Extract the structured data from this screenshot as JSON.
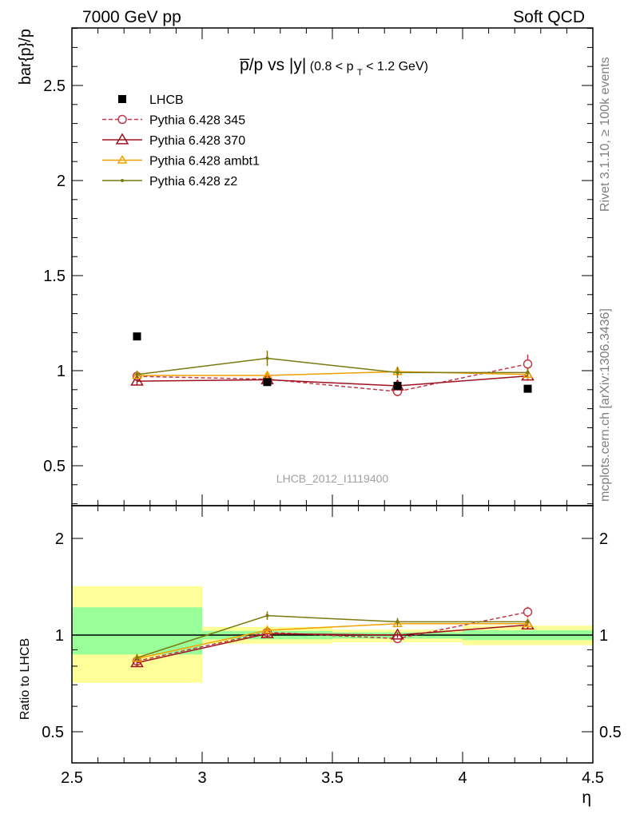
{
  "header": {
    "left": "7000 GeV pp",
    "right": "Soft QCD",
    "side_top": "Rivet 3.1.10, ≥ 100k events",
    "side_bottom": "mcplots.cern.ch [arXiv:1306.3436]",
    "watermark": "LHCB_2012_I1119400"
  },
  "chart_data": [
    {
      "type": "line",
      "title_main": "p̅/p vs |y|",
      "title_cut": "(0.8 < p",
      "title_cut_sub": "T",
      "title_cut_end": " < 1.2 GeV)",
      "xlabel": "η",
      "ylabel": "bar{p}/p",
      "xlim": [
        2.5,
        4.5
      ],
      "ylim": [
        0.3,
        2.8
      ],
      "x_ticks": [
        "2.5",
        "3",
        "3.5",
        "4",
        "4.5"
      ],
      "y_ticks": [
        "0.5",
        "1",
        "1.5",
        "2",
        "2.5"
      ],
      "legend_position": "top-left",
      "data": {
        "name": "LHCB",
        "color": "#000000",
        "x": [
          2.75,
          3.25,
          3.75,
          4.25
        ],
        "y": [
          1.18,
          0.94,
          0.92,
          0.905
        ]
      },
      "series": [
        {
          "name": "Pythia 6.428 345",
          "color": "#c0394b",
          "dash": "5,3",
          "marker": "open-circle",
          "x": [
            2.75,
            3.25,
            3.75,
            4.25
          ],
          "y": [
            0.97,
            0.955,
            0.89,
            1.035
          ],
          "err": [
            0.02,
            0.02,
            0.025,
            0.05
          ]
        },
        {
          "name": "Pythia 6.428 370",
          "color": "#a01020",
          "dash": "",
          "marker": "open-triangle",
          "x": [
            2.75,
            3.25,
            3.75,
            4.25
          ],
          "y": [
            0.945,
            0.952,
            0.92,
            0.972
          ],
          "err": [
            0.02,
            0.02,
            0.02,
            0.025
          ]
        },
        {
          "name": "Pythia 6.428 ambt1",
          "color": "#f0a000",
          "dash": "",
          "marker": "small-open-triangle",
          "x": [
            2.75,
            3.25,
            3.75,
            4.25
          ],
          "y": [
            0.975,
            0.975,
            0.995,
            0.98
          ],
          "err": [
            0.02,
            0.02,
            0.025,
            0.025
          ]
        },
        {
          "name": "Pythia 6.428 z2",
          "color": "#7a7a10",
          "dash": "",
          "marker": "dot",
          "x": [
            2.75,
            3.25,
            3.75,
            4.25
          ],
          "y": [
            0.98,
            1.065,
            0.99,
            0.99
          ],
          "err": [
            0.02,
            0.04,
            0.03,
            0.02
          ]
        }
      ]
    },
    {
      "type": "line",
      "ylabel": "Ratio to LHCB",
      "xlim": [
        2.5,
        4.5
      ],
      "ylim": [
        0.3,
        2.3
      ],
      "y_ticks": [
        "0.5",
        "1",
        "2"
      ],
      "bands": [
        {
          "x0": 2.5,
          "x1": 3.0,
          "yellow": [
            0.71,
            1.42
          ],
          "green": [
            0.87,
            1.22
          ]
        },
        {
          "x0": 3.0,
          "x1": 3.5,
          "yellow": [
            0.94,
            1.06
          ],
          "green": [
            0.97,
            1.03
          ]
        },
        {
          "x0": 3.5,
          "x1": 4.0,
          "yellow": [
            0.95,
            1.04
          ],
          "green": [
            0.975,
            1.02
          ]
        },
        {
          "x0": 4.0,
          "x1": 4.5,
          "yellow": [
            0.93,
            1.07
          ],
          "green": [
            0.965,
            1.035
          ]
        }
      ],
      "series": [
        {
          "name": "Pythia 6.428 345",
          "x": [
            2.75,
            3.25,
            3.75,
            4.25
          ],
          "y": [
            0.83,
            1.02,
            0.975,
            1.18
          ],
          "err": [
            0.02,
            0.02,
            0.03,
            0.045
          ]
        },
        {
          "name": "Pythia 6.428 370",
          "x": [
            2.75,
            3.25,
            3.75,
            4.25
          ],
          "y": [
            0.82,
            1.01,
            1.0,
            1.075
          ],
          "err": [
            0.02,
            0.02,
            0.02,
            0.025
          ]
        },
        {
          "name": "Pythia 6.428 ambt1",
          "x": [
            2.75,
            3.25,
            3.75,
            4.25
          ],
          "y": [
            0.845,
            1.035,
            1.085,
            1.085
          ],
          "err": [
            0.02,
            0.02,
            0.025,
            0.025
          ]
        },
        {
          "name": "Pythia 6.428 z2",
          "x": [
            2.75,
            3.25,
            3.75,
            4.25
          ],
          "y": [
            0.85,
            1.15,
            1.1,
            1.1
          ],
          "err": [
            0.02,
            0.035,
            0.03,
            0.02
          ]
        }
      ]
    }
  ]
}
